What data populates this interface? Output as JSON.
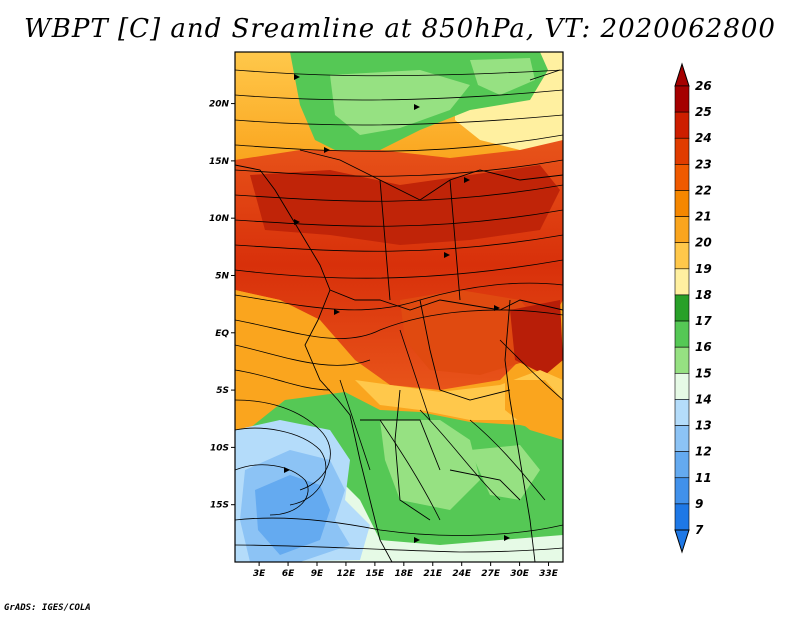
{
  "title": "WBPT [C] and Sreamline at 850hPa, VT: 2020062800",
  "credit": "GrADS: IGES/COLA",
  "map": {
    "variable": "WBPT",
    "units": "C",
    "level": "850hPa",
    "valid_time": "2020062800",
    "lat_ticks": [
      "20N",
      "15N",
      "10N",
      "5N",
      "EQ",
      "5S",
      "10S",
      "15S"
    ],
    "lat_values": [
      20,
      15,
      10,
      5,
      0,
      -5,
      -10,
      -15
    ],
    "lon_ticks": [
      "3E",
      "6E",
      "9E",
      "12E",
      "15E",
      "18E",
      "21E",
      "24E",
      "27E",
      "30E",
      "33E"
    ],
    "lon_values": [
      3,
      6,
      9,
      12,
      15,
      18,
      21,
      24,
      27,
      30,
      33
    ],
    "lat_range": [
      -20,
      24.5
    ],
    "lon_range": [
      0.5,
      34.5
    ]
  },
  "colorbar": {
    "labels": [
      "26",
      "25",
      "24",
      "23",
      "22",
      "21",
      "20",
      "19",
      "18",
      "17",
      "16",
      "15",
      "14",
      "13",
      "12",
      "11",
      "9",
      "7"
    ],
    "colors": [
      "#a50000",
      "#cd1e00",
      "#e03c00",
      "#f05a00",
      "#f58700",
      "#faa51e",
      "#ffc84b",
      "#fff0a0",
      "#28a028",
      "#55c855",
      "#96e182",
      "#e6fae6",
      "#b4dcfa",
      "#8cc3f5",
      "#64aaf0",
      "#4191eb",
      "#1e78e6"
    ]
  }
}
